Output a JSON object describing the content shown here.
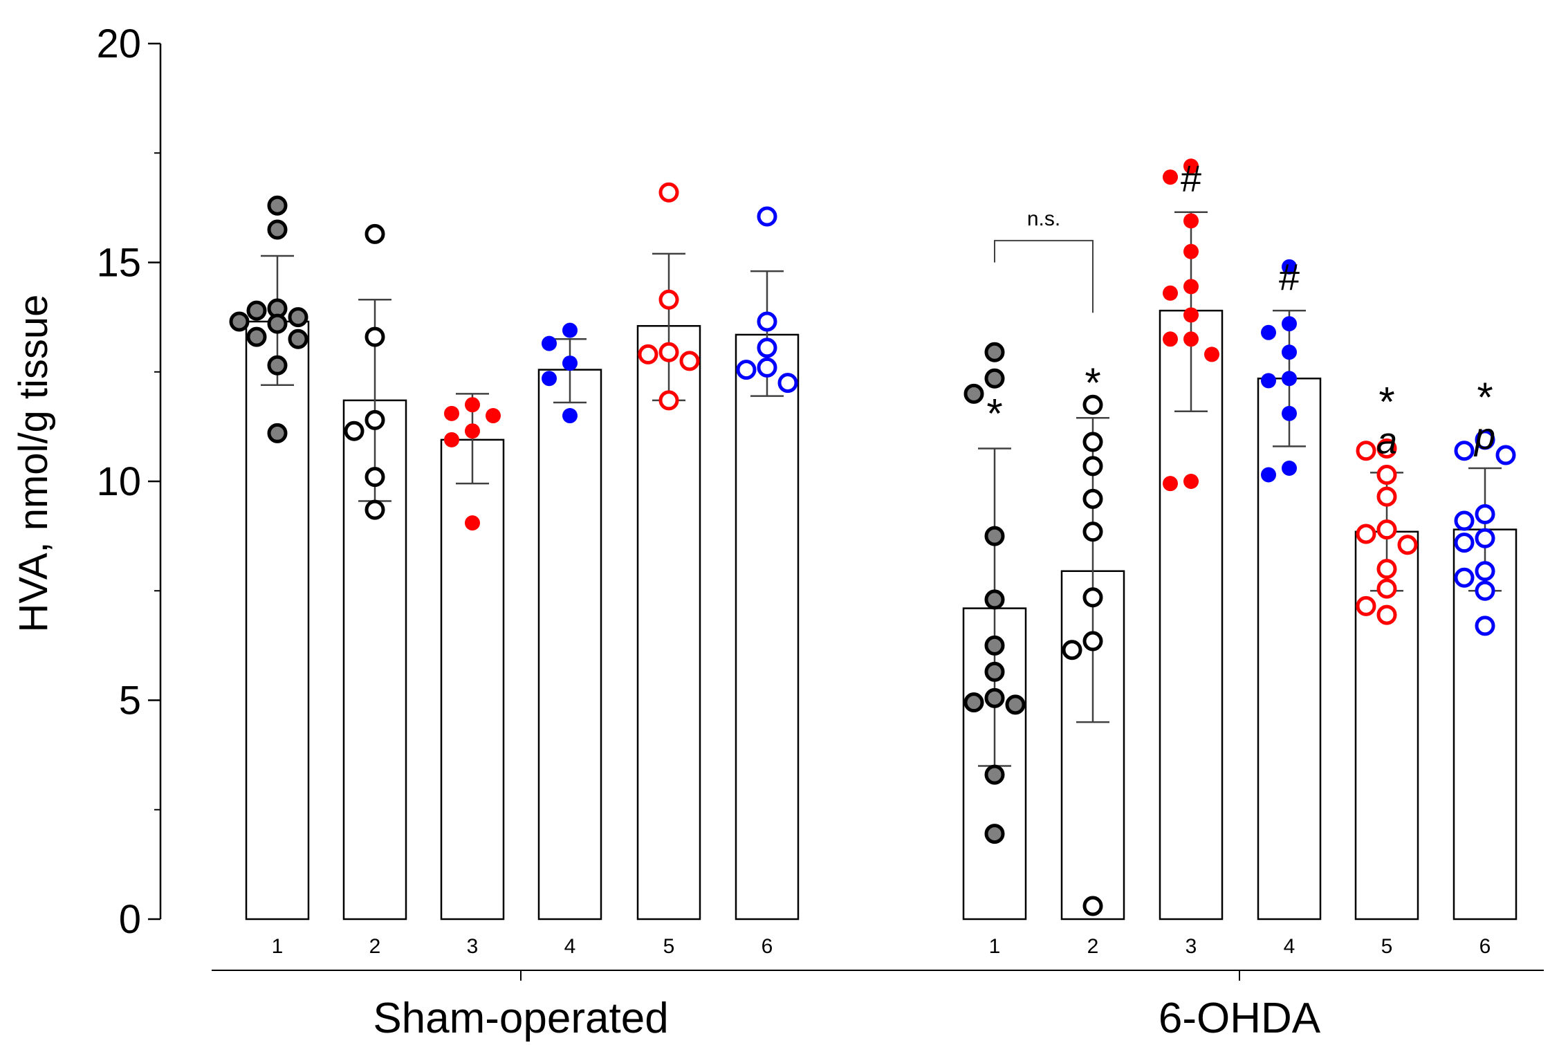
{
  "chart_data": {
    "type": "bar",
    "ylabel": "HVA, nmol/g tissue",
    "ylim": [
      0,
      20
    ],
    "yticks": [
      0,
      5,
      10,
      15,
      20
    ],
    "grid": false,
    "groups": [
      {
        "name": "Sham-operated",
        "bars": [
          {
            "label": "1",
            "mean": 13.65,
            "sd_low": 12.2,
            "sd_high": 15.15,
            "marker": "gray",
            "annotation": "",
            "points": [
              16.3,
              15.75,
              13.95,
              13.9,
              13.75,
              13.6,
              13.65,
              13.3,
              13.25,
              12.65,
              11.1
            ]
          },
          {
            "label": "2",
            "mean": 11.85,
            "sd_low": 9.55,
            "sd_high": 14.15,
            "marker": "black-open",
            "annotation": "",
            "points": [
              15.65,
              13.3,
              11.4,
              11.15,
              10.1,
              9.35
            ]
          },
          {
            "label": "3",
            "mean": 10.95,
            "sd_low": 9.95,
            "sd_high": 12.0,
            "marker": "red",
            "annotation": "",
            "points": [
              11.75,
              11.55,
              11.5,
              11.15,
              10.95,
              9.05
            ]
          },
          {
            "label": "4",
            "mean": 12.55,
            "sd_low": 11.8,
            "sd_high": 13.25,
            "marker": "blue",
            "annotation": "",
            "points": [
              13.45,
              13.15,
              12.7,
              12.35,
              11.5
            ]
          },
          {
            "label": "5",
            "mean": 13.55,
            "sd_low": 11.85,
            "sd_high": 15.2,
            "marker": "red-open",
            "annotation": "",
            "points": [
              16.6,
              14.15,
              12.95,
              12.9,
              12.75,
              11.85
            ]
          },
          {
            "label": "6",
            "mean": 13.35,
            "sd_low": 11.95,
            "sd_high": 14.8,
            "marker": "blue-open",
            "annotation": "",
            "points": [
              16.05,
              13.65,
              13.05,
              12.6,
              12.55,
              12.25
            ]
          }
        ]
      },
      {
        "name": "6-OHDA",
        "bars": [
          {
            "label": "1",
            "mean": 7.1,
            "sd_low": 3.5,
            "sd_high": 10.75,
            "marker": "gray",
            "annotation": "*",
            "points": [
              12.95,
              12.35,
              12.0,
              8.75,
              7.3,
              6.25,
              5.65,
              5.05,
              4.95,
              4.9,
              3.3,
              1.95
            ]
          },
          {
            "label": "2",
            "mean": 7.95,
            "sd_low": 4.5,
            "sd_high": 11.45,
            "marker": "black-open",
            "annotation": "*",
            "points": [
              11.75,
              10.9,
              10.35,
              9.6,
              8.85,
              7.35,
              6.35,
              6.15,
              0.3
            ]
          },
          {
            "label": "3",
            "mean": 13.9,
            "sd_low": 11.6,
            "sd_high": 16.15,
            "marker": "red",
            "annotation": "#",
            "points": [
              17.2,
              16.95,
              15.95,
              15.25,
              14.45,
              14.3,
              13.8,
              13.25,
              13.25,
              12.9,
              10.0,
              9.95
            ]
          },
          {
            "label": "4",
            "mean": 12.35,
            "sd_low": 10.8,
            "sd_high": 13.9,
            "marker": "blue",
            "annotation": "#",
            "points": [
              14.9,
              13.6,
              13.4,
              12.95,
              12.35,
              12.3,
              11.55,
              10.3,
              10.15
            ]
          },
          {
            "label": "5",
            "mean": 8.85,
            "sd_low": 7.5,
            "sd_high": 10.2,
            "marker": "red-open",
            "annotation": "*",
            "sublabel": "a",
            "points": [
              10.75,
              10.7,
              10.15,
              9.65,
              8.9,
              8.8,
              8.55,
              8.0,
              7.55,
              7.15,
              6.95
            ]
          },
          {
            "label": "6",
            "mean": 8.9,
            "sd_low": 7.5,
            "sd_high": 10.3,
            "marker": "blue-open",
            "annotation": "*",
            "sublabel": "p",
            "points": [
              10.95,
              10.7,
              10.6,
              9.25,
              9.1,
              8.7,
              8.6,
              7.95,
              7.8,
              7.5,
              6.7
            ]
          }
        ]
      }
    ],
    "comparison": {
      "label": "n.s.",
      "group": "6-OHDA",
      "from": "1",
      "to": "2",
      "value": 15.5,
      "drop_to": 13.85
    }
  },
  "colors": {
    "black": "#000000",
    "gray": "#808080",
    "red": "#ff0000",
    "blue": "#0000ff",
    "bar_border": "#000000",
    "axis": "#000000",
    "error_bar": "#404040"
  }
}
